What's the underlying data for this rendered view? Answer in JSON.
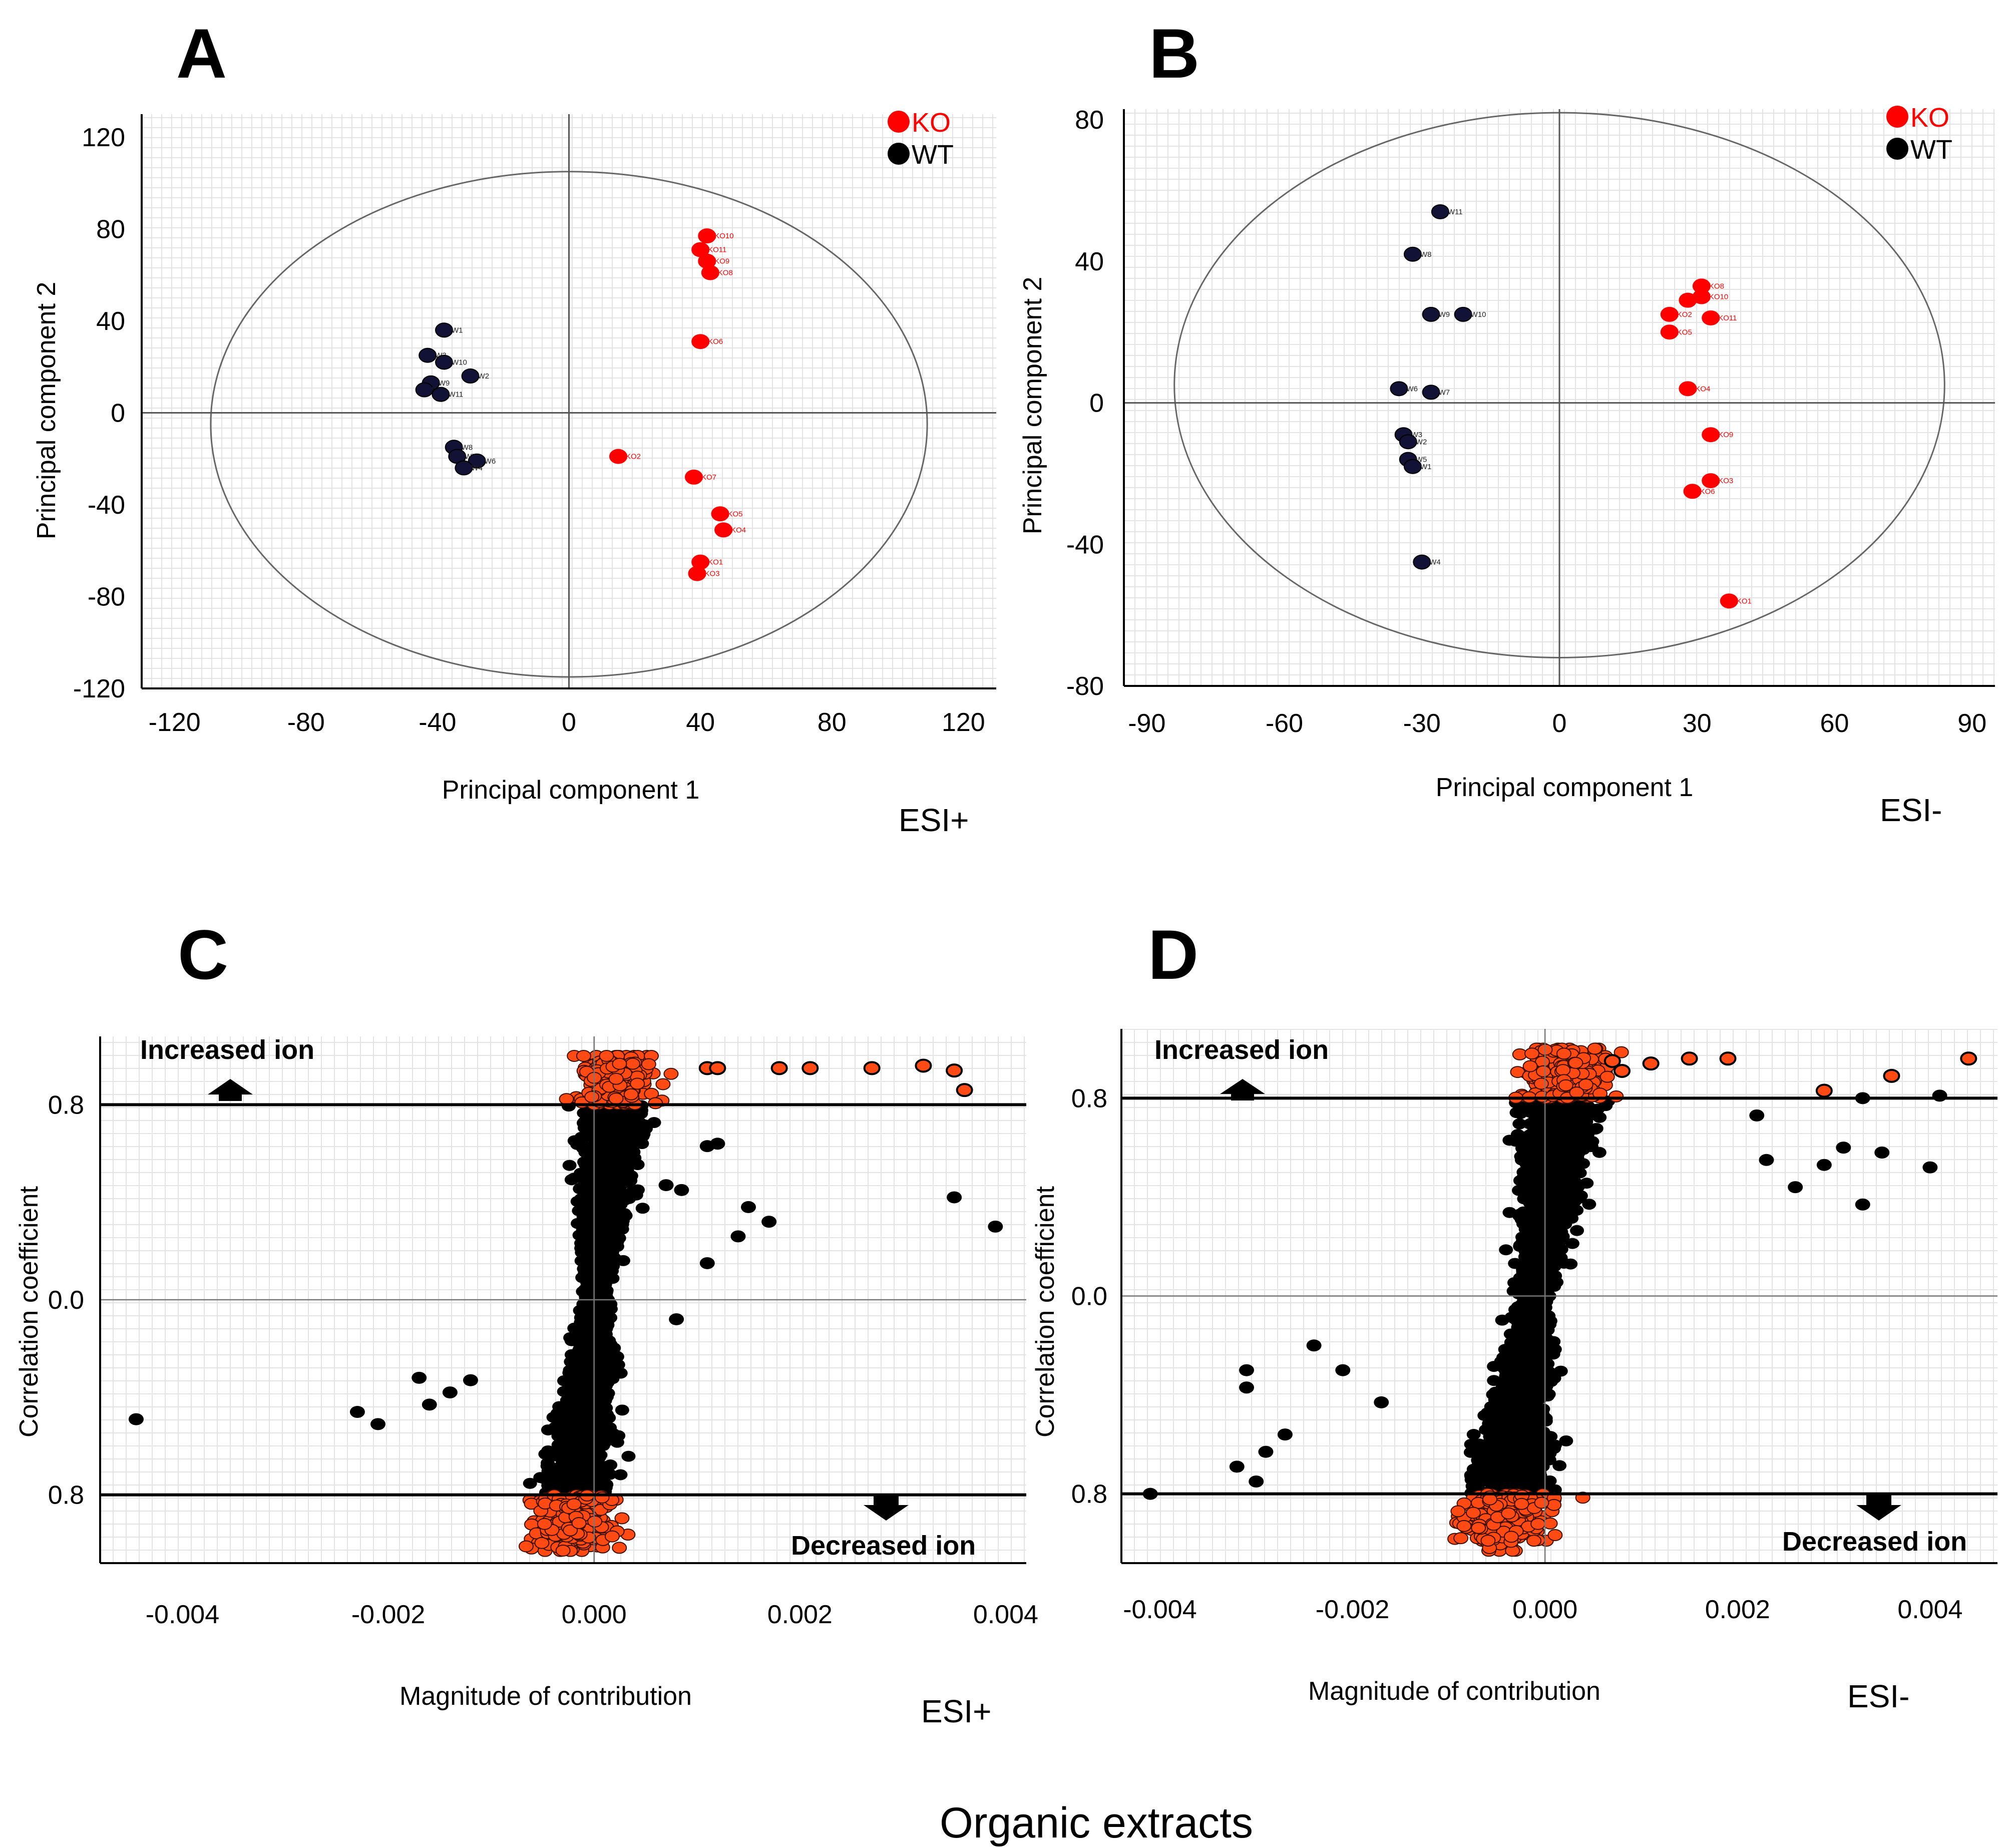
{
  "colors": {
    "ko": "#ff0000",
    "wt": "#000000",
    "wt_fill": "#121236",
    "loading_point": "#000000",
    "loading_hit": "#ff4a14",
    "axis": "#000000",
    "gridline": "#e3e3e3",
    "ellipse": "#666666"
  },
  "caption": "Organic extracts",
  "chart_data": [
    {
      "panel": "A",
      "type": "scatter",
      "mode_label": "ESI+",
      "xlabel": "Principal component 1",
      "ylabel": "Principal component 2",
      "xlim": [
        -130,
        130
      ],
      "ylim": [
        -120,
        130
      ],
      "xticks": [
        -120,
        -80,
        -40,
        0,
        40,
        80,
        120
      ],
      "yticks": [
        120,
        80,
        40,
        0,
        -40,
        -80,
        -120
      ],
      "ellipse": {
        "rx": 109,
        "ry": 110,
        "cy": -5
      },
      "legend": [
        {
          "name": "KO",
          "color": "ko"
        },
        {
          "name": "WT",
          "color": "wt"
        }
      ],
      "series": [
        {
          "name": "KO",
          "points": [
            {
              "label": "KO10",
              "x": 42,
              "y": 77
            },
            {
              "label": "KO11",
              "x": 40,
              "y": 71
            },
            {
              "label": "KO9",
              "x": 42,
              "y": 66
            },
            {
              "label": "KO8",
              "x": 43,
              "y": 61
            },
            {
              "label": "KO6",
              "x": 40,
              "y": 31
            },
            {
              "label": "KO2",
              "x": 15,
              "y": -19
            },
            {
              "label": "KO7",
              "x": 38,
              "y": -28
            },
            {
              "label": "KO5",
              "x": 46,
              "y": -44
            },
            {
              "label": "KO4",
              "x": 47,
              "y": -51
            },
            {
              "label": "KO1",
              "x": 40,
              "y": -65
            },
            {
              "label": "KO3",
              "x": 39,
              "y": -70
            }
          ]
        },
        {
          "name": "WT",
          "points": [
            {
              "label": "W1",
              "x": -38,
              "y": 36
            },
            {
              "label": "W3",
              "x": -43,
              "y": 25
            },
            {
              "label": "W10",
              "x": -38,
              "y": 22
            },
            {
              "label": "W2",
              "x": -30,
              "y": 16
            },
            {
              "label": "W9",
              "x": -42,
              "y": 13
            },
            {
              "label": "W5",
              "x": -44,
              "y": 10
            },
            {
              "label": "W11",
              "x": -39,
              "y": 8
            },
            {
              "label": "W8",
              "x": -35,
              "y": -15
            },
            {
              "label": "W7",
              "x": -34,
              "y": -19
            },
            {
              "label": "W6",
              "x": -28,
              "y": -21
            },
            {
              "label": "W4",
              "x": -32,
              "y": -24
            }
          ]
        }
      ]
    },
    {
      "panel": "B",
      "type": "scatter",
      "mode_label": "ESI-",
      "xlabel": "Principal component 1",
      "ylabel": "Principal component 2",
      "xlim": [
        -95,
        95
      ],
      "ylim": [
        -80,
        83
      ],
      "xticks": [
        -90,
        -60,
        -30,
        0,
        30,
        60,
        90
      ],
      "yticks": [
        80,
        40,
        0,
        -40,
        -80
      ],
      "ellipse": {
        "rx": 84,
        "ry": 77,
        "cy": 5
      },
      "legend": [
        {
          "name": "KO",
          "color": "ko"
        },
        {
          "name": "WT",
          "color": "wt"
        }
      ],
      "series": [
        {
          "name": "KO",
          "points": [
            {
              "label": "KO8",
              "x": 31,
              "y": 33
            },
            {
              "label": "KO10",
              "x": 31,
              "y": 30
            },
            {
              "label": "KO",
              "x": 28,
              "y": 29
            },
            {
              "label": "KO2",
              "x": 24,
              "y": 25
            },
            {
              "label": "KO11",
              "x": 33,
              "y": 24
            },
            {
              "label": "KO5",
              "x": 24,
              "y": 20
            },
            {
              "label": "KO4",
              "x": 28,
              "y": 4
            },
            {
              "label": "KO9",
              "x": 33,
              "y": -9
            },
            {
              "label": "KO3",
              "x": 33,
              "y": -22
            },
            {
              "label": "KO6",
              "x": 29,
              "y": -25
            },
            {
              "label": "KO1",
              "x": 37,
              "y": -56
            }
          ]
        },
        {
          "name": "WT",
          "points": [
            {
              "label": "W11",
              "x": -26,
              "y": 54
            },
            {
              "label": "W8",
              "x": -32,
              "y": 42
            },
            {
              "label": "W9",
              "x": -28,
              "y": 25
            },
            {
              "label": "W10",
              "x": -21,
              "y": 25
            },
            {
              "label": "W6",
              "x": -35,
              "y": 4
            },
            {
              "label": "W7",
              "x": -28,
              "y": 3
            },
            {
              "label": "W3",
              "x": -34,
              "y": -9
            },
            {
              "label": "W2",
              "x": -33,
              "y": -11
            },
            {
              "label": "W5",
              "x": -33,
              "y": -16
            },
            {
              "label": "W1",
              "x": -32,
              "y": -18
            },
            {
              "label": "W4",
              "x": -30,
              "y": -45
            }
          ]
        }
      ]
    },
    {
      "panel": "C",
      "type": "scatter",
      "mode_label": "ESI+",
      "xlabel": "Magnitude of contribution",
      "ylabel": "Correlation coefficient",
      "xlim": [
        -0.0048,
        0.0042
      ],
      "ylim": [
        -1.08,
        1.08
      ],
      "xticks": [
        "-0.004",
        "-0.002",
        "0.000",
        "0.002",
        "0.004"
      ],
      "yticks": [
        "0.8",
        "0.0",
        "0.8"
      ],
      "threshold": 0.8,
      "annotation_up": "Increased ion",
      "annotation_down": "Decreased ion",
      "outliers": [
        {
          "x": -0.00445,
          "y": -0.49
        },
        {
          "x": -0.0023,
          "y": -0.46
        },
        {
          "x": -0.0021,
          "y": -0.51
        },
        {
          "x": -0.0017,
          "y": -0.32
        },
        {
          "x": -0.0016,
          "y": -0.43
        },
        {
          "x": -0.0014,
          "y": -0.38
        },
        {
          "x": -0.0012,
          "y": -0.33
        },
        {
          "x": 0.0007,
          "y": 0.47
        },
        {
          "x": 0.00085,
          "y": 0.45
        },
        {
          "x": 0.0011,
          "y": 0.63
        },
        {
          "x": 0.0012,
          "y": 0.64
        },
        {
          "x": 0.0015,
          "y": 0.38
        },
        {
          "x": 0.0017,
          "y": 0.32
        },
        {
          "x": 0.0014,
          "y": 0.26
        },
        {
          "x": 0.0011,
          "y": 0.15
        },
        {
          "x": 0.0008,
          "y": -0.08
        },
        {
          "x": 0.0035,
          "y": 0.42
        },
        {
          "x": 0.0039,
          "y": 0.3
        }
      ],
      "highlight_outliers": [
        {
          "x": 0.0011,
          "y": 0.95
        },
        {
          "x": 0.0012,
          "y": 0.95
        },
        {
          "x": 0.0018,
          "y": 0.95
        },
        {
          "x": 0.0021,
          "y": 0.95
        },
        {
          "x": 0.0027,
          "y": 0.95
        },
        {
          "x": 0.0032,
          "y": 0.96
        },
        {
          "x": 0.0035,
          "y": 0.94
        },
        {
          "x": 0.0036,
          "y": 0.86
        }
      ]
    },
    {
      "panel": "D",
      "type": "scatter",
      "mode_label": "ESI-",
      "xlabel": "Magnitude of contribution",
      "ylabel": "Correlation coefficient",
      "xlim": [
        -0.0044,
        0.0047
      ],
      "ylim": [
        -1.08,
        1.08
      ],
      "xticks": [
        "-0.004",
        "-0.002",
        "0.000",
        "0.002",
        "0.004"
      ],
      "yticks": [
        "0.8",
        "0.0",
        "0.8"
      ],
      "threshold": 0.8,
      "annotation_up": "Increased ion",
      "annotation_down": "Decreased ion",
      "outliers": [
        {
          "x": -0.0041,
          "y": -0.8
        },
        {
          "x": -0.003,
          "y": -0.75
        },
        {
          "x": -0.0032,
          "y": -0.69
        },
        {
          "x": -0.0029,
          "y": -0.63
        },
        {
          "x": -0.0027,
          "y": -0.56
        },
        {
          "x": -0.0031,
          "y": -0.3
        },
        {
          "x": -0.0031,
          "y": -0.37
        },
        {
          "x": -0.0024,
          "y": -0.2
        },
        {
          "x": -0.0021,
          "y": -0.3
        },
        {
          "x": -0.0017,
          "y": -0.43
        },
        {
          "x": 0.0033,
          "y": 0.8
        },
        {
          "x": 0.0035,
          "y": 0.58
        },
        {
          "x": 0.004,
          "y": 0.52
        },
        {
          "x": 0.0041,
          "y": 0.81
        },
        {
          "x": 0.0031,
          "y": 0.6
        },
        {
          "x": 0.0033,
          "y": 0.37
        },
        {
          "x": 0.0029,
          "y": 0.53
        },
        {
          "x": 0.0022,
          "y": 0.73
        },
        {
          "x": 0.0023,
          "y": 0.55
        },
        {
          "x": 0.0026,
          "y": 0.44
        }
      ],
      "highlight_outliers": [
        {
          "x": 0.0007,
          "y": 0.95
        },
        {
          "x": 0.0008,
          "y": 0.91
        },
        {
          "x": 0.0011,
          "y": 0.94
        },
        {
          "x": 0.0015,
          "y": 0.96
        },
        {
          "x": 0.0019,
          "y": 0.96
        },
        {
          "x": 0.0029,
          "y": 0.83
        },
        {
          "x": 0.0036,
          "y": 0.89
        },
        {
          "x": 0.0044,
          "y": 0.96
        }
      ]
    }
  ]
}
